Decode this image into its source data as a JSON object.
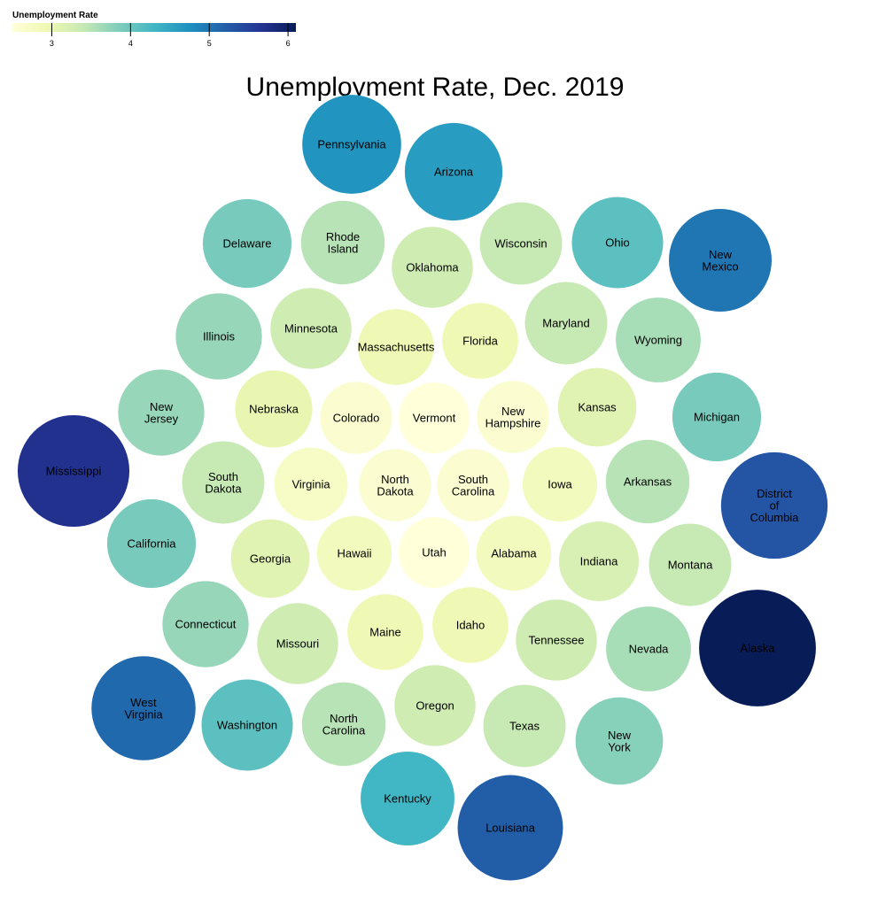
{
  "chart_data": {
    "type": "bubble",
    "title": "Unemployment Rate, Dec. 2019",
    "legend": {
      "title": "Unemployment Rate",
      "ticks": [
        3,
        4,
        5,
        6
      ],
      "domain": [
        2.5,
        6.1
      ],
      "placement": "top-left"
    },
    "colors": [
      "#ffffd9",
      "#edf8b1",
      "#c7e9b4",
      "#7fcdbb",
      "#41b6c4",
      "#1d91c0",
      "#225ea8",
      "#253494",
      "#081d58"
    ],
    "states": [
      {
        "name": "Pennsylvania",
        "value": 4.7
      },
      {
        "name": "Arizona",
        "value": 4.6
      },
      {
        "name": "Delaware",
        "value": 3.9
      },
      {
        "name": "Rhode Island",
        "value": 3.5
      },
      {
        "name": "Oklahoma",
        "value": 3.3
      },
      {
        "name": "Wisconsin",
        "value": 3.4
      },
      {
        "name": "Ohio",
        "value": 4.1
      },
      {
        "name": "New Mexico",
        "value": 5.0
      },
      {
        "name": "Illinois",
        "value": 3.7
      },
      {
        "name": "Minnesota",
        "value": 3.3
      },
      {
        "name": "Massachusetts",
        "value": 2.9
      },
      {
        "name": "Florida",
        "value": 2.9
      },
      {
        "name": "Maryland",
        "value": 3.4
      },
      {
        "name": "Wyoming",
        "value": 3.6
      },
      {
        "name": "New Jersey",
        "value": 3.7
      },
      {
        "name": "Nebraska",
        "value": 3.0
      },
      {
        "name": "Colorado",
        "value": 2.6
      },
      {
        "name": "Vermont",
        "value": 2.5
      },
      {
        "name": "New Hampshire",
        "value": 2.6
      },
      {
        "name": "Kansas",
        "value": 3.1
      },
      {
        "name": "Michigan",
        "value": 3.9
      },
      {
        "name": "Mississippi",
        "value": 5.7
      },
      {
        "name": "South Dakota",
        "value": 3.4
      },
      {
        "name": "Virginia",
        "value": 2.7
      },
      {
        "name": "North Dakota",
        "value": 2.6
      },
      {
        "name": "South Carolina",
        "value": 2.6
      },
      {
        "name": "Iowa",
        "value": 2.8
      },
      {
        "name": "Arkansas",
        "value": 3.5
      },
      {
        "name": "District of Columbia",
        "value": 5.3
      },
      {
        "name": "California",
        "value": 3.9
      },
      {
        "name": "Georgia",
        "value": 3.1
      },
      {
        "name": "Hawaii",
        "value": 2.8
      },
      {
        "name": "Utah",
        "value": 2.5
      },
      {
        "name": "Alabama",
        "value": 2.8
      },
      {
        "name": "Indiana",
        "value": 3.2
      },
      {
        "name": "Montana",
        "value": 3.4
      },
      {
        "name": "Connecticut",
        "value": 3.7
      },
      {
        "name": "Missouri",
        "value": 3.3
      },
      {
        "name": "Maine",
        "value": 2.9
      },
      {
        "name": "Idaho",
        "value": 2.9
      },
      {
        "name": "Tennessee",
        "value": 3.3
      },
      {
        "name": "Nevada",
        "value": 3.6
      },
      {
        "name": "Alaska",
        "value": 6.1
      },
      {
        "name": "West Virginia",
        "value": 5.1
      },
      {
        "name": "Washington",
        "value": 4.1
      },
      {
        "name": "North Carolina",
        "value": 3.5
      },
      {
        "name": "Oregon",
        "value": 3.3
      },
      {
        "name": "Texas",
        "value": 3.4
      },
      {
        "name": "New York",
        "value": 3.8
      },
      {
        "name": "Kentucky",
        "value": 4.3
      },
      {
        "name": "Louisiana",
        "value": 5.2
      }
    ]
  }
}
